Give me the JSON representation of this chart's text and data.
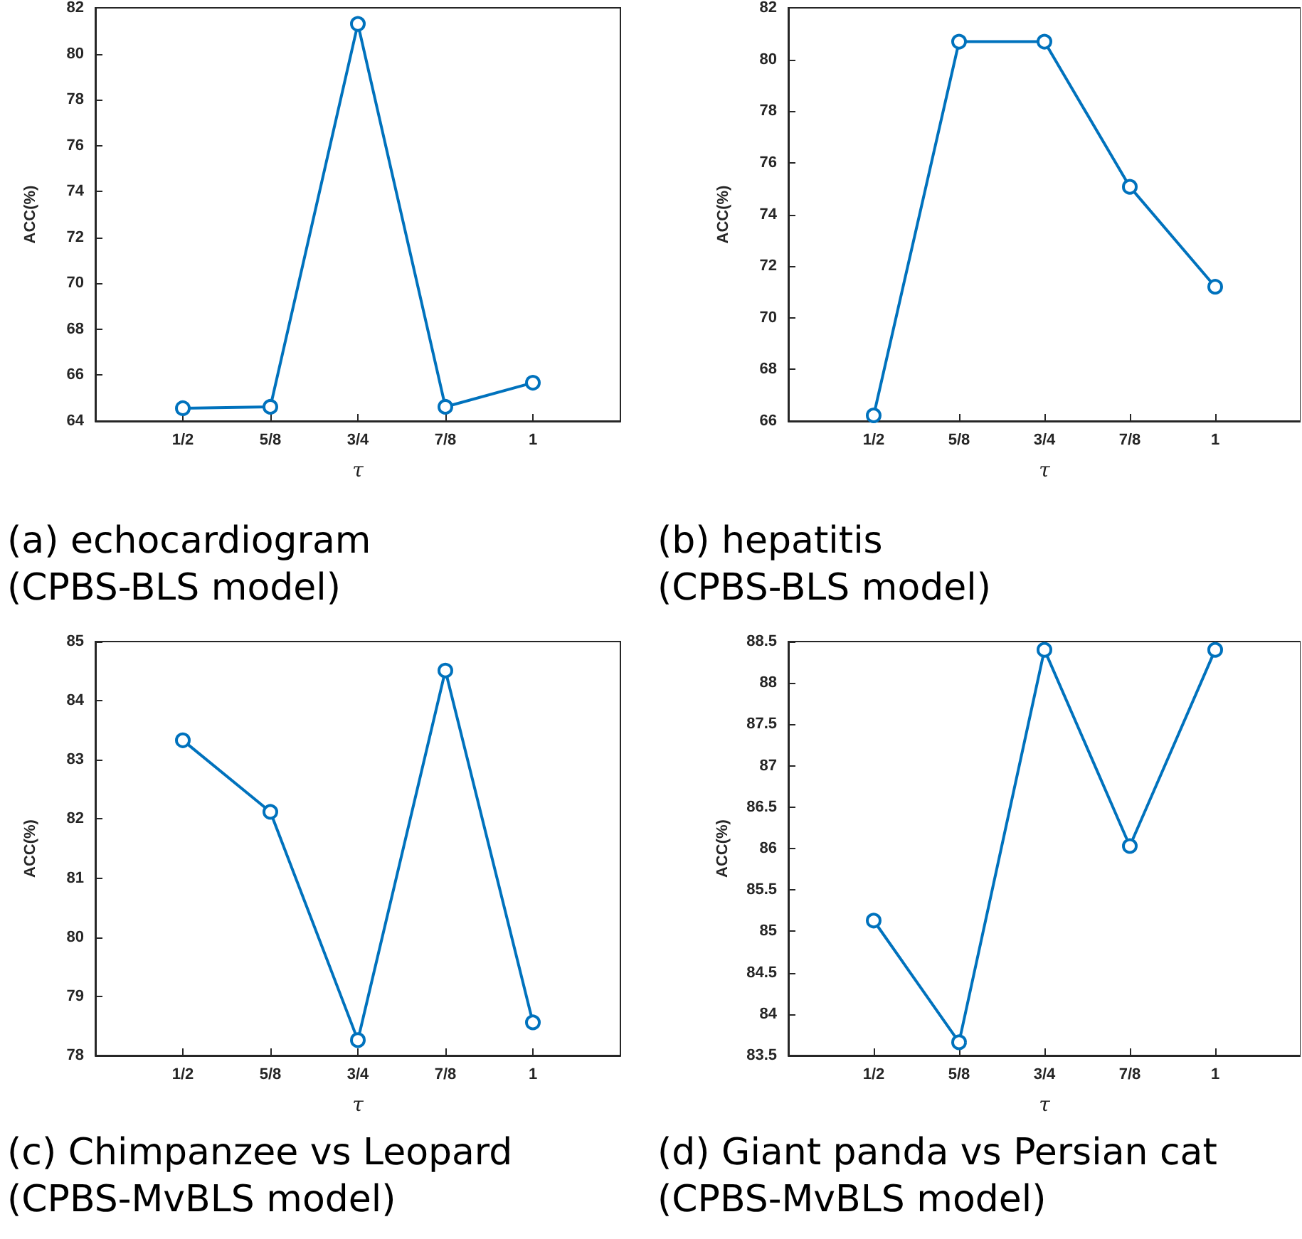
{
  "chart_data": [
    {
      "type": "line",
      "title": "(a) echocardiogram\n(CPBS-BLS model)",
      "xlabel": "τ",
      "ylabel": "ACC(%)",
      "categories": [
        "1/2",
        "5/8",
        "3/4",
        "7/8",
        "1"
      ],
      "series": [
        {
          "color": "#0072bd",
          "values": [
            64.56,
            64.62,
            81.3,
            64.62,
            65.67
          ]
        }
      ],
      "ylim": [
        64,
        82
      ],
      "yticks": [
        64,
        66,
        68,
        70,
        72,
        74,
        76,
        78,
        80,
        82
      ],
      "grid": false,
      "marker": "circle",
      "line_style": "solid"
    },
    {
      "type": "line",
      "title": "(b) hepatitis\n(CPBS-BLS model)",
      "xlabel": "τ",
      "ylabel": "ACC(%)",
      "categories": [
        "1/2",
        "5/8",
        "3/4",
        "7/8",
        "1"
      ],
      "series": [
        {
          "color": "#0072bd",
          "values": [
            66.22,
            80.69,
            80.69,
            75.07,
            71.2
          ]
        }
      ],
      "ylim": [
        66,
        82
      ],
      "yticks": [
        66,
        68,
        70,
        72,
        74,
        76,
        78,
        80,
        82
      ],
      "grid": false,
      "marker": "circle",
      "line_style": "solid"
    },
    {
      "type": "line",
      "title": "(c) Chimpanzee vs Leopard\n(CPBS-MvBLS model)",
      "xlabel": "τ",
      "ylabel": "ACC(%)",
      "categories": [
        "1/2",
        "5/8",
        "3/4",
        "7/8",
        "1"
      ],
      "series": [
        {
          "color": "#0072bd",
          "values": [
            83.33,
            82.12,
            78.26,
            84.51,
            78.56
          ]
        }
      ],
      "ylim": [
        78,
        85
      ],
      "yticks": [
        78,
        79,
        80,
        81,
        82,
        83,
        84,
        85
      ],
      "grid": false,
      "marker": "circle",
      "line_style": "solid"
    },
    {
      "type": "line",
      "title": "(d) Giant panda vs Persian cat\n(CPBS-MvBLS model)",
      "xlabel": "τ",
      "ylabel": "ACC(%)",
      "categories": [
        "1/2",
        "5/8",
        "3/4",
        "7/8",
        "1"
      ],
      "series": [
        {
          "color": "#0072bd",
          "values": [
            85.13,
            83.66,
            88.4,
            86.03,
            88.4
          ]
        }
      ],
      "ylim": [
        83.5,
        88.5
      ],
      "yticks": [
        83.5,
        84,
        84.5,
        85,
        85.5,
        86,
        86.5,
        87,
        87.5,
        88,
        88.5
      ],
      "grid": false,
      "marker": "circle",
      "line_style": "solid"
    }
  ]
}
